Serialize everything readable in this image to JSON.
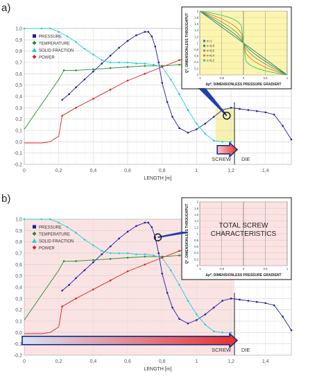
{
  "chart_data": [
    {
      "panel_label": "a)",
      "type": "line",
      "xlabel": "LENGTH [m]",
      "xlim": [
        0,
        1.55
      ],
      "ylim": [
        -0.2,
        1.0
      ],
      "x_ticks": [
        "0",
        "0,2",
        "0,4",
        "0,6",
        "0,8",
        "1",
        "1,2",
        "1,4"
      ],
      "y_ticks": [
        "1,0",
        "0,9",
        "0,8",
        "0,7",
        "0,6",
        "0,5",
        "0,4",
        "0,3",
        "0,2",
        "0,1",
        "0,0",
        "-0,1",
        "-0,2"
      ],
      "legend": [
        "PRESSURE",
        "TEMPERATURE",
        "SOLID FRACTION",
        "POWER"
      ],
      "screw_label": "SCREW",
      "die_label": "DIE",
      "screw_end": 1.22,
      "highlight_x": [
        1.11,
        1.22
      ],
      "series": [
        {
          "name": "PRESSURE",
          "color": "#1a1aa6",
          "x": [
            0.22,
            0.26,
            0.3,
            0.35,
            0.4,
            0.45,
            0.5,
            0.55,
            0.6,
            0.65,
            0.7,
            0.72,
            0.74,
            0.76,
            0.78,
            0.8,
            0.83,
            0.86,
            0.9,
            0.95,
            1.0,
            1.05,
            1.1,
            1.15,
            1.2,
            1.25,
            1.3,
            1.35,
            1.4,
            1.45,
            1.5,
            1.55
          ],
          "y": [
            0.37,
            0.42,
            0.48,
            0.55,
            0.62,
            0.69,
            0.76,
            0.83,
            0.89,
            0.94,
            0.97,
            0.97,
            0.93,
            0.84,
            0.7,
            0.52,
            0.35,
            0.22,
            0.12,
            0.08,
            0.11,
            0.16,
            0.22,
            0.28,
            0.3,
            0.29,
            0.28,
            0.27,
            0.26,
            0.24,
            0.14,
            0.02
          ]
        },
        {
          "name": "TEMPERATURE",
          "color": "#1f8a2e",
          "x": [
            0,
            0.05,
            0.1,
            0.15,
            0.2,
            0.23,
            0.3,
            0.4,
            0.5,
            0.6,
            0.7,
            0.8,
            0.9,
            1.0,
            1.1,
            1.2
          ],
          "y": [
            0.11,
            0.22,
            0.33,
            0.44,
            0.55,
            0.63,
            0.63,
            0.64,
            0.65,
            0.66,
            0.67,
            0.67,
            0.68,
            0.69,
            0.69,
            0.7
          ]
        },
        {
          "name": "SOLID FRACTION",
          "color": "#1ecfd6",
          "x": [
            0,
            0.1,
            0.15,
            0.2,
            0.25,
            0.3,
            0.35,
            0.4,
            0.45,
            0.5,
            0.55,
            0.6,
            0.65,
            0.7,
            0.75,
            0.8,
            0.85,
            0.9,
            0.95,
            1.0,
            1.05,
            1.1,
            1.15,
            1.2
          ],
          "y": [
            1.0,
            1.0,
            1.0,
            0.97,
            0.93,
            0.88,
            0.82,
            0.77,
            0.72,
            0.7,
            0.7,
            0.7,
            0.69,
            0.69,
            0.68,
            0.66,
            0.55,
            0.42,
            0.28,
            0.16,
            0.07,
            0.01,
            0.0,
            0.0
          ]
        },
        {
          "name": "POWER",
          "color": "#e02020",
          "x": [
            0,
            0.1,
            0.15,
            0.2,
            0.22,
            0.3,
            0.4,
            0.5,
            0.6,
            0.7,
            0.8,
            0.9,
            1.0,
            1.1,
            1.2
          ],
          "y": [
            -0.01,
            -0.01,
            0.0,
            0.05,
            0.23,
            0.3,
            0.38,
            0.46,
            0.54,
            0.6,
            0.66,
            0.72,
            0.76,
            0.8,
            0.84
          ]
        }
      ],
      "inset": {
        "ylabel": "Q*, DIMENSIONLESS THROUGHPUT",
        "xlabel": "Δp*, DIMENSIONLESS PRESSURE GRADIENT",
        "y_ticks": [
          "2",
          "1,8",
          "1,6",
          "1,4",
          "1,2",
          "1",
          "0,8",
          "0,6",
          "0,4",
          "0,2",
          "0"
        ],
        "x_ticks": [
          "-1",
          "-0,5",
          "0",
          "0,5",
          "1"
        ],
        "legend": [
          "n=1",
          "n=0,8",
          "n=0,6",
          "n=0,4",
          "n=0,2"
        ],
        "series": [
          {
            "name": "n=1",
            "color": "#1a7a90",
            "n": 1
          },
          {
            "name": "n=0,8",
            "color": "#1f8a2e",
            "n": 0.8
          },
          {
            "name": "n=0,6",
            "color": "#888888",
            "n": 0.6
          },
          {
            "name": "n=0,4",
            "color": "#e87a1a",
            "n": 0.4
          },
          {
            "name": "n=0,2",
            "color": "#2ccf70",
            "n": 0.2
          }
        ]
      }
    },
    {
      "panel_label": "b)",
      "type": "line",
      "xlabel": "LENGTH [m]",
      "xlim": [
        0,
        1.55
      ],
      "ylim": [
        -0.2,
        1.0
      ],
      "x_ticks": [
        "0",
        "0,2",
        "0,4",
        "0,6",
        "0,8",
        "1",
        "1,2",
        "1,4"
      ],
      "y_ticks": [
        "1,0",
        "0,9",
        "0,8",
        "0,7",
        "0,6",
        "0,5",
        "0,4",
        "0,3",
        "0,2",
        "0,1",
        "0,0",
        "-0,1",
        "-0,2"
      ],
      "legend": [
        "PRESSURE",
        "TEMPERATURE",
        "SOLID FRACTION",
        "POWER"
      ],
      "screw_label": "SCREW",
      "die_label": "DIE",
      "screw_end": 1.22,
      "inset": {
        "ylabel": "Q*, DIMENSIONLESS THROUGHPUT",
        "xlabel": "Δp*, DIMENSIONLESS PRESSURE GRADIENT",
        "y_ticks": [
          "2",
          "1,8",
          "1,6",
          "1,4",
          "1,2",
          "1",
          "0,8",
          "0,6",
          "0,4",
          "0,2",
          "0"
        ],
        "x_ticks": [
          "-1",
          "-0,5",
          "0",
          "0,5",
          "1"
        ],
        "text_line1": "TOTAL SCREW",
        "text_line2": "CHARACTERISTICS"
      }
    }
  ]
}
